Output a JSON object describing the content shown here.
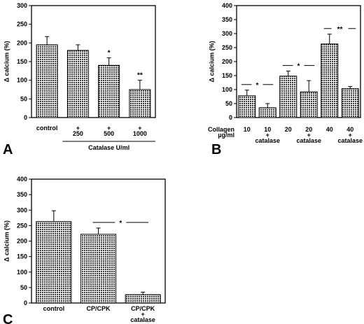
{
  "chart_data": [
    {
      "panel": "A",
      "type": "bar",
      "ylabel": "Δ calcium (%)",
      "ylim": [
        0,
        300
      ],
      "yticks": [
        0,
        50,
        100,
        150,
        200,
        250,
        300
      ],
      "categories": [
        {
          "lines": [
            "control"
          ]
        },
        {
          "lines": [
            "+",
            "250"
          ]
        },
        {
          "lines": [
            "+",
            "500"
          ]
        },
        {
          "lines": [
            "+",
            "1000"
          ]
        }
      ],
      "values": [
        195,
        180,
        140,
        75
      ],
      "errors": [
        22,
        15,
        20,
        25
      ],
      "significance": [
        "",
        "",
        "*",
        "**"
      ],
      "group_label": "Catalase  U/ml"
    },
    {
      "panel": "B",
      "type": "bar",
      "ylabel": "Δ calcium (%)",
      "ylim": [
        0,
        400
      ],
      "yticks": [
        0,
        50,
        100,
        150,
        200,
        250,
        300,
        350,
        400
      ],
      "categories": [
        {
          "lines": [
            "10"
          ]
        },
        {
          "lines": [
            "10",
            "+",
            "catalase"
          ]
        },
        {
          "lines": [
            "20"
          ]
        },
        {
          "lines": [
            "20",
            "+",
            "catalase"
          ]
        },
        {
          "lines": [
            "40"
          ]
        },
        {
          "lines": [
            "40",
            "+",
            "catalase"
          ]
        }
      ],
      "values": [
        78,
        35,
        148,
        92,
        263,
        103
      ],
      "errors": [
        20,
        15,
        18,
        40,
        35,
        8
      ],
      "row_label": [
        "Collagen",
        "µg/ml"
      ],
      "comparisons": [
        {
          "from": 0,
          "to": 1,
          "mark": "*"
        },
        {
          "from": 2,
          "to": 3,
          "mark": "*"
        },
        {
          "from": 4,
          "to": 5,
          "mark": "**"
        }
      ]
    },
    {
      "panel": "C",
      "type": "bar",
      "ylabel": "Δ calcium (%)",
      "ylim": [
        0,
        400
      ],
      "yticks": [
        0,
        50,
        100,
        150,
        200,
        250,
        300,
        350,
        400
      ],
      "categories": [
        {
          "lines": [
            "control"
          ]
        },
        {
          "lines": [
            "CP/CPK"
          ]
        },
        {
          "lines": [
            "CP/CPK",
            "+",
            "catalase"
          ]
        }
      ],
      "values": [
        263,
        222,
        27
      ],
      "errors": [
        35,
        20,
        8
      ],
      "comparisons": [
        {
          "from": 1,
          "to": 2,
          "mark": "*"
        }
      ]
    }
  ]
}
